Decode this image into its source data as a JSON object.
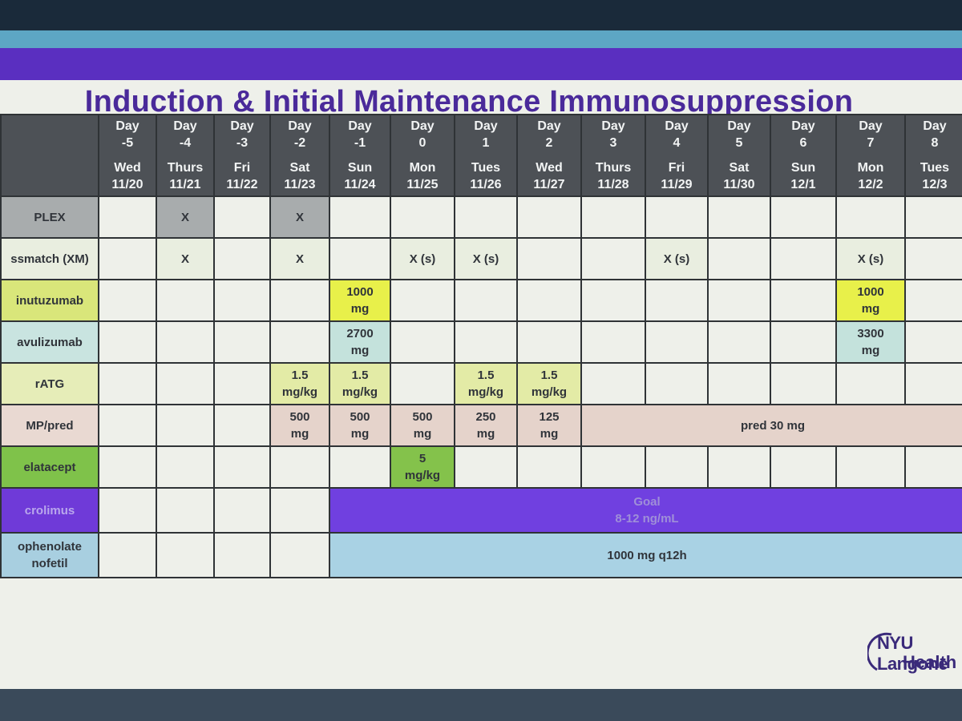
{
  "title": "Induction & Initial Maintenance Immunosuppression",
  "days": [
    {
      "day": "Day",
      "num": "-5",
      "dow": "Wed",
      "date": "11/20"
    },
    {
      "day": "Day",
      "num": "-4",
      "dow": "Thurs",
      "date": "11/21"
    },
    {
      "day": "Day",
      "num": "-3",
      "dow": "Fri",
      "date": "11/22"
    },
    {
      "day": "Day",
      "num": "-2",
      "dow": "Sat",
      "date": "11/23"
    },
    {
      "day": "Day",
      "num": "-1",
      "dow": "Sun",
      "date": "11/24"
    },
    {
      "day": "Day",
      "num": "0",
      "dow": "Mon",
      "date": "11/25"
    },
    {
      "day": "Day",
      "num": "1",
      "dow": "Tues",
      "date": "11/26"
    },
    {
      "day": "Day",
      "num": "2",
      "dow": "Wed",
      "date": "11/27"
    },
    {
      "day": "Day",
      "num": "3",
      "dow": "Thurs",
      "date": "11/28"
    },
    {
      "day": "Day",
      "num": "4",
      "dow": "Fri",
      "date": "11/29"
    },
    {
      "day": "Day",
      "num": "5",
      "dow": "Sat",
      "date": "11/30"
    },
    {
      "day": "Day",
      "num": "6",
      "dow": "Sun",
      "date": "12/1"
    },
    {
      "day": "Day",
      "num": "7",
      "dow": "Mon",
      "date": "12/2"
    },
    {
      "day": "Day",
      "num": "8",
      "dow": "Tues",
      "date": "12/3"
    }
  ],
  "rows": {
    "plex": {
      "label": "PLEX",
      "x": "X"
    },
    "xm": {
      "label": "ssmatch (XM)",
      "x": "X",
      "xs": "X (s)"
    },
    "rit": {
      "label": "inutuzumab",
      "d1": "1000",
      "d2": "mg"
    },
    "ravu": {
      "label": "avulizumab",
      "a1": "2700",
      "a2": "mg",
      "b1": "3300",
      "b2": "mg"
    },
    "ratg": {
      "label": "rATG",
      "d1": "1.5",
      "d2": "mg/kg"
    },
    "mp": {
      "label": "MP/pred",
      "v500": "500",
      "v250": "250",
      "v125": "125",
      "unit": "mg",
      "pred": "pred 30 mg"
    },
    "bela": {
      "label": "elatacept",
      "d1": "5",
      "d2": "mg/kg"
    },
    "tac": {
      "label": "crolimus",
      "goal1": "Goal",
      "goal2": "8-12 ng/mL"
    },
    "myco": {
      "label1": "ophenolate",
      "label2": "nofetil",
      "dose": "1000 mg q12h"
    }
  },
  "logo": {
    "line1": "NYU Langone",
    "line2": "Health"
  },
  "colors": {
    "header": "#4d5156",
    "purple": "#5a2fc0",
    "title": "#4a2a9a",
    "yellow": "#e8f04a",
    "green": "#7fc24a",
    "blue": "#a8cfe0"
  }
}
